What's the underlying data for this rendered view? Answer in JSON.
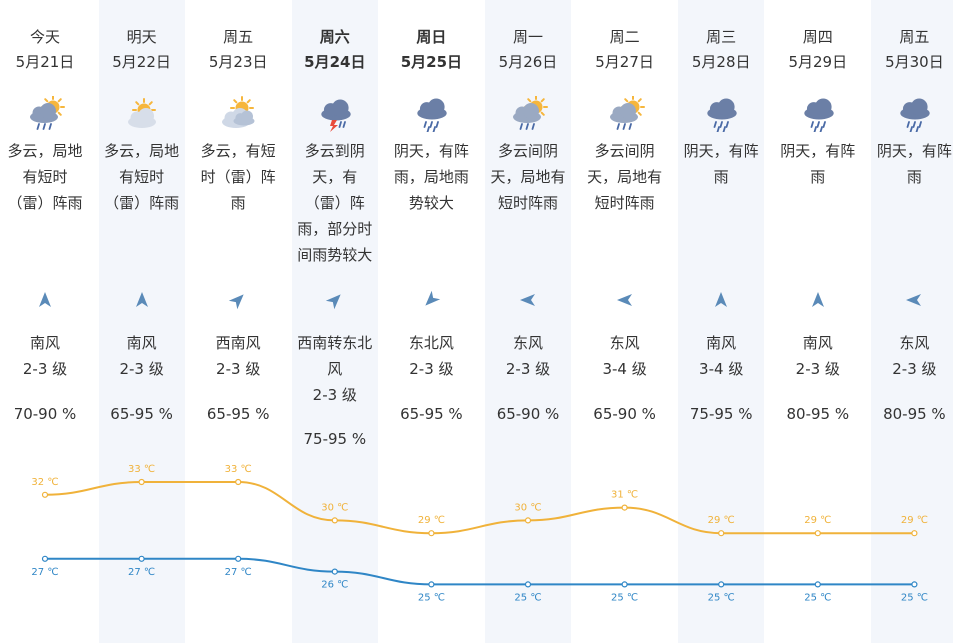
{
  "colors": {
    "high": "#f0b23a",
    "low": "#2f86c6",
    "arrow": "#5a8ab8",
    "alt_bg": "#f3f6fb"
  },
  "days": [
    {
      "day": "今天",
      "date": "5月21日",
      "bold": false,
      "icon": "partly-cloudy-thunder-rain-icon",
      "desc": [
        "多云，局地",
        "有短时",
        "（雷）阵雨"
      ],
      "wind_dir": "up",
      "wind": [
        "南风",
        "2-3 级"
      ],
      "humidity": "70-90 %",
      "high": 32,
      "low": 27,
      "high_label": "32 ℃",
      "low_label": "27 ℃"
    },
    {
      "day": "明天",
      "date": "5月22日",
      "bold": false,
      "icon": "partly-cloudy-sun-icon",
      "desc": [
        "多云，局地",
        "有短时",
        "（雷）阵雨"
      ],
      "wind_dir": "up",
      "wind": [
        "南风",
        "2-3 级"
      ],
      "humidity": "65-95 %",
      "high": 33,
      "low": 27,
      "high_label": "33 ℃",
      "low_label": "27 ℃"
    },
    {
      "day": "周五",
      "date": "5月23日",
      "bold": false,
      "icon": "sun-behind-cloud-icon",
      "desc": [
        "多云，有短",
        "时（雷）阵",
        "雨"
      ],
      "wind_dir": "up-right",
      "wind": [
        "西南风",
        "2-3 级"
      ],
      "humidity": "65-95 %",
      "high": 33,
      "low": 27,
      "high_label": "33 ℃",
      "low_label": "27 ℃"
    },
    {
      "day": "周六",
      "date": "5月24日",
      "bold": true,
      "icon": "thunderstorm-cloud-icon",
      "desc": [
        "多云到阴",
        "天，有",
        "（雷）阵",
        "雨，部分时",
        "间雨势较大"
      ],
      "wind_dir": "up-right",
      "wind": [
        "西南转东北",
        "风",
        "2-3 级"
      ],
      "humidity": "75-95 %",
      "high": 30,
      "low": 26,
      "high_label": "30 ℃",
      "low_label": "26 ℃"
    },
    {
      "day": "周日",
      "date": "5月25日",
      "bold": true,
      "icon": "rain-cloud-icon",
      "desc": [
        "阴天，有阵",
        "雨，局地雨",
        "势较大"
      ],
      "wind_dir": "down-left",
      "wind": [
        "东北风",
        "2-3 级"
      ],
      "humidity": "65-95 %",
      "high": 29,
      "low": 25,
      "high_label": "29 ℃",
      "low_label": "25 ℃"
    },
    {
      "day": "周一",
      "date": "5月26日",
      "bold": false,
      "icon": "partly-cloudy-rain-icon",
      "desc": [
        "多云间阴",
        "天，局地有",
        "短时阵雨"
      ],
      "wind_dir": "left",
      "wind": [
        "东风",
        "2-3 级"
      ],
      "humidity": "65-90 %",
      "high": 30,
      "low": 25,
      "high_label": "30 ℃",
      "low_label": "25 ℃"
    },
    {
      "day": "周二",
      "date": "5月27日",
      "bold": false,
      "icon": "partly-cloudy-rain-icon",
      "desc": [
        "多云间阴",
        "天，局地有",
        "短时阵雨"
      ],
      "wind_dir": "left",
      "wind": [
        "东风",
        "3-4 级"
      ],
      "humidity": "65-90 %",
      "high": 31,
      "low": 25,
      "high_label": "31 ℃",
      "low_label": "25 ℃"
    },
    {
      "day": "周三",
      "date": "5月28日",
      "bold": false,
      "icon": "rain-cloud-icon",
      "desc": [
        "阴天，有阵",
        "雨"
      ],
      "wind_dir": "up",
      "wind": [
        "南风",
        "3-4 级"
      ],
      "humidity": "75-95 %",
      "high": 29,
      "low": 25,
      "high_label": "29 ℃",
      "low_label": "25 ℃"
    },
    {
      "day": "周四",
      "date": "5月29日",
      "bold": false,
      "icon": "rain-cloud-icon",
      "desc": [
        "阴天，有阵",
        "雨"
      ],
      "wind_dir": "up",
      "wind": [
        "南风",
        "2-3 级"
      ],
      "humidity": "80-95 %",
      "high": 29,
      "low": 25,
      "high_label": "29 ℃",
      "low_label": "25 ℃"
    },
    {
      "day": "周五",
      "date": "5月30日",
      "bold": false,
      "icon": "rain-cloud-icon",
      "desc": [
        "阴天，有阵",
        "雨"
      ],
      "wind_dir": "left",
      "wind": [
        "东风",
        "2-3 级"
      ],
      "humidity": "80-95 %",
      "high": 29,
      "low": 25,
      "high_label": "29 ℃",
      "low_label": "25 ℃"
    }
  ]
}
